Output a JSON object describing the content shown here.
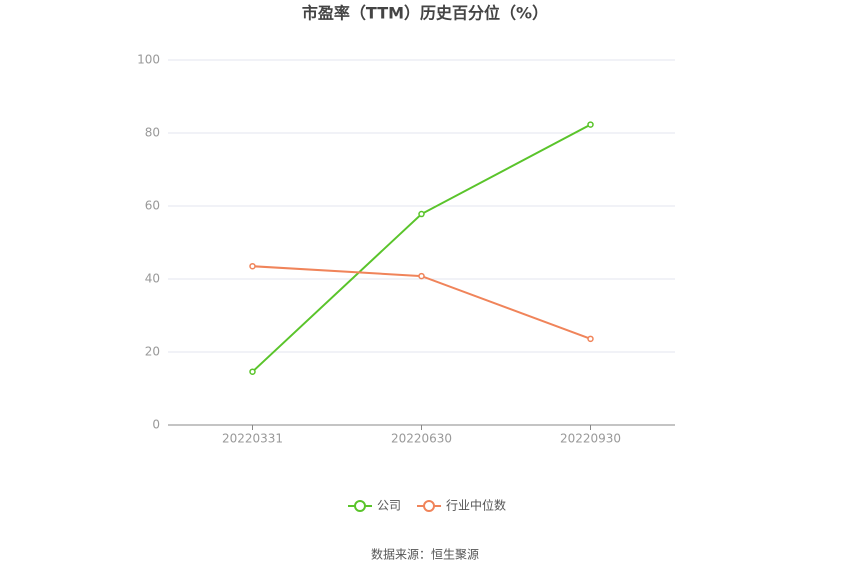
{
  "chart_data": {
    "type": "line",
    "title": "市盈率（TTM）历史百分位（%）",
    "categories": [
      "20220331",
      "20220630",
      "20220930"
    ],
    "series": [
      {
        "name": "公司",
        "color": "#5ac42b",
        "values": [
          14.6,
          57.8,
          82.3
        ]
      },
      {
        "name": "行业中位数",
        "color": "#f0845a",
        "values": [
          43.5,
          40.8,
          23.6
        ]
      }
    ],
    "ylim": [
      0,
      100
    ],
    "yticks": [
      0,
      20,
      40,
      60,
      80,
      100
    ],
    "grid": true,
    "source": "数据来源：恒生聚源"
  }
}
